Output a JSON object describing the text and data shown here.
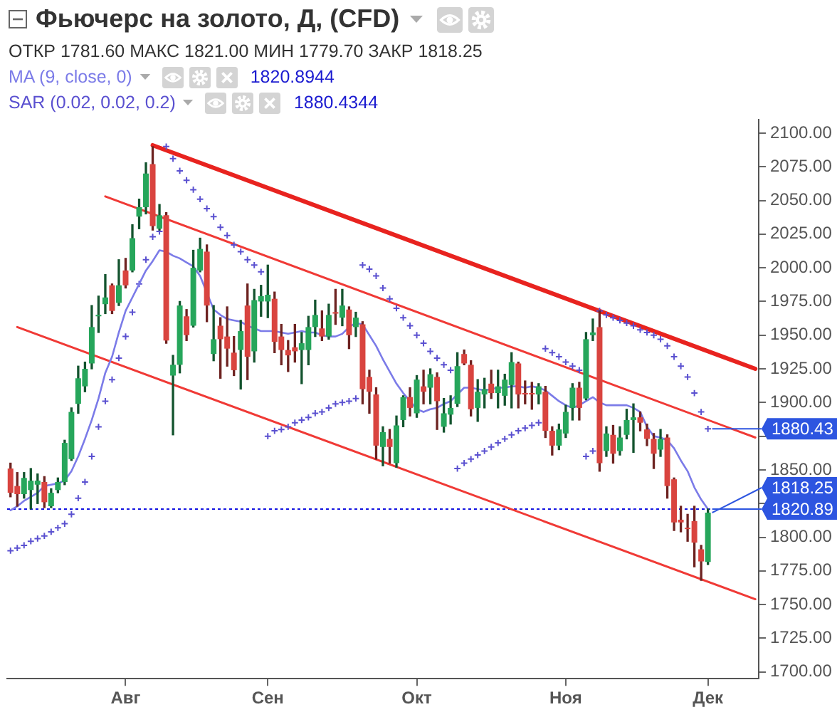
{
  "chart_data": {
    "type": "candlestick",
    "title": "Фьючерс на золото, Д, (CFD)",
    "annotations": [
      "ОТКР 1781.60 МАКС 1821.00 МИН 1779.70 ЗАКР 1818.25",
      "1820.8944",
      "1880.4344",
      {
        "text": "1880.43",
        "x": "Дек",
        "y": 1880.43
      },
      {
        "text": "1820.89",
        "x": "Дек",
        "y": 1820.89
      },
      {
        "text": "1818.25",
        "x": "Дек",
        "y": 1818.25
      }
    ],
    "categories": [
      null,
      null,
      null,
      null,
      null,
      null,
      null,
      null,
      null,
      null,
      null,
      null,
      null,
      null,
      null,
      null,
      null,
      "Авг",
      null,
      null,
      null,
      null,
      null,
      null,
      null,
      null,
      null,
      null,
      null,
      null,
      null,
      null,
      null,
      null,
      null,
      null,
      null,
      null,
      "Сен",
      null,
      null,
      null,
      null,
      null,
      null,
      null,
      null,
      null,
      null,
      null,
      null,
      null,
      null,
      null,
      null,
      null,
      null,
      null,
      null,
      null,
      "Окт",
      null,
      null,
      null,
      null,
      null,
      null,
      null,
      null,
      null,
      null,
      null,
      null,
      null,
      null,
      null,
      null,
      null,
      null,
      null,
      null,
      null,
      "Ноя",
      null,
      null,
      null,
      null,
      null,
      null,
      null,
      null,
      null,
      null,
      null,
      null,
      null,
      null,
      null,
      null,
      null,
      null,
      null,
      null,
      "Дек",
      null,
      null,
      null,
      null,
      null,
      null,
      null
    ],
    "ohlc": [
      [
        1851,
        1855,
        1830,
        1833
      ],
      [
        1838,
        1848,
        1823,
        1832
      ],
      [
        1832,
        1848,
        1829,
        1844
      ],
      [
        1835,
        1851,
        1821,
        1842
      ],
      [
        1839,
        1847,
        1825,
        1842
      ],
      [
        1841,
        1845,
        1822,
        1826
      ],
      [
        1823,
        1836,
        1822,
        1833
      ],
      [
        1835,
        1844,
        1833,
        1841
      ],
      [
        1841,
        1872,
        1839,
        1870
      ],
      [
        1858,
        1896,
        1857,
        1893
      ],
      [
        1899,
        1927,
        1892,
        1918
      ],
      [
        1912,
        1930,
        1908,
        1925
      ],
      [
        1929,
        1972,
        1925,
        1956
      ],
      [
        1964,
        1979,
        1952,
        1965
      ],
      [
        1973,
        1995,
        1966,
        1978
      ],
      [
        1987,
        1988,
        1966,
        1968
      ],
      [
        1974,
        2006,
        1972,
        1987
      ],
      [
        1998,
        2007,
        1985,
        1987
      ],
      [
        1998,
        2032,
        1997,
        2022
      ],
      [
        2038,
        2051,
        2029,
        2045
      ],
      [
        2045,
        2078,
        2040,
        2070
      ],
      [
        2077,
        2090,
        2028,
        2031
      ],
      [
        2029,
        2047,
        2028,
        2039
      ],
      [
        2039,
        2041,
        1944,
        1946
      ],
      [
        1920,
        1935,
        1876,
        1928
      ],
      [
        1928,
        1975,
        1922,
        1972
      ],
      [
        1964,
        1969,
        1946,
        1950
      ],
      [
        1957,
        2013,
        1956,
        2000
      ],
      [
        1998,
        2022,
        1997,
        2014
      ],
      [
        2012,
        2017,
        1960,
        1972
      ],
      [
        1936,
        1972,
        1931,
        1947
      ],
      [
        1957,
        1963,
        1918,
        1947
      ],
      [
        1949,
        1971,
        1927,
        1940
      ],
      [
        1937,
        1949,
        1920,
        1924
      ],
      [
        1939,
        1961,
        1910,
        1953
      ],
      [
        1972,
        1988,
        1917,
        1934
      ],
      [
        1938,
        1984,
        1930,
        1976
      ],
      [
        1975,
        1987,
        1964,
        1979
      ],
      [
        1975,
        2002,
        1963,
        1980
      ],
      [
        1977,
        1982,
        1937,
        1945
      ],
      [
        1949,
        1958,
        1928,
        1939
      ],
      [
        1939,
        1946,
        1923,
        1935
      ],
      [
        1941,
        1958,
        1930,
        1938
      ],
      [
        1939,
        1952,
        1914,
        1944
      ],
      [
        1939,
        1964,
        1928,
        1956
      ],
      [
        1956,
        1976,
        1949,
        1965
      ],
      [
        1955,
        1968,
        1946,
        1949
      ],
      [
        1949,
        1973,
        1947,
        1965
      ],
      [
        1967,
        1984,
        1958,
        1966
      ],
      [
        1963,
        1984,
        1957,
        1972
      ],
      [
        1969,
        1971,
        1940,
        1950
      ],
      [
        1956,
        1967,
        1949,
        1963
      ],
      [
        1958,
        1960,
        1899,
        1910
      ],
      [
        1919,
        1924,
        1892,
        1908
      ],
      [
        1906,
        1911,
        1858,
        1868
      ],
      [
        1867,
        1882,
        1853,
        1878
      ],
      [
        1873,
        1880,
        1855,
        1867
      ],
      [
        1855,
        1890,
        1852,
        1883
      ],
      [
        1887,
        1905,
        1882,
        1904
      ],
      [
        1904,
        1911,
        1890,
        1896
      ],
      [
        1892,
        1920,
        1889,
        1917
      ],
      [
        1912,
        1924,
        1899,
        1908
      ],
      [
        1911,
        1925,
        1899,
        1921
      ],
      [
        1919,
        1922,
        1880,
        1901
      ],
      [
        1882,
        1903,
        1878,
        1892
      ],
      [
        1891,
        1905,
        1884,
        1896
      ],
      [
        1899,
        1937,
        1897,
        1927
      ],
      [
        1936,
        1939,
        1928,
        1929
      ],
      [
        1928,
        1931,
        1890,
        1895
      ],
      [
        1896,
        1917,
        1886,
        1908
      ],
      [
        1906,
        1918,
        1896,
        1910
      ],
      [
        1914,
        1924,
        1903,
        1907
      ],
      [
        1907,
        1924,
        1896,
        1912
      ],
      [
        1905,
        1921,
        1898,
        1917
      ],
      [
        1913,
        1937,
        1896,
        1930
      ],
      [
        1929,
        1930,
        1896,
        1906
      ],
      [
        1907,
        1916,
        1899,
        1906
      ],
      [
        1907,
        1915,
        1895,
        1906
      ],
      [
        1906,
        1914,
        1899,
        1912
      ],
      [
        1908,
        1912,
        1874,
        1879
      ],
      [
        1879,
        1882,
        1861,
        1868
      ],
      [
        1868,
        1884,
        1865,
        1880
      ],
      [
        1877,
        1898,
        1874,
        1893
      ],
      [
        1896,
        1914,
        1887,
        1911
      ],
      [
        1911,
        1915,
        1887,
        1896
      ],
      [
        1903,
        1952,
        1902,
        1947
      ],
      [
        1950,
        1962,
        1946,
        1952
      ],
      [
        1956,
        1968,
        1849,
        1855
      ],
      [
        1864,
        1882,
        1860,
        1877
      ],
      [
        1876,
        1883,
        1855,
        1862
      ],
      [
        1864,
        1882,
        1861,
        1874
      ],
      [
        1876,
        1895,
        1873,
        1887
      ],
      [
        1887,
        1899,
        1863,
        1889
      ],
      [
        1889,
        1893,
        1879,
        1885
      ],
      [
        1880,
        1884,
        1868,
        1873
      ],
      [
        1873,
        1877,
        1851,
        1862
      ],
      [
        1865,
        1880,
        1860,
        1873
      ],
      [
        1874,
        1876,
        1829,
        1838
      ],
      [
        1843,
        1844,
        1805,
        1811
      ],
      [
        1813,
        1823,
        1804,
        1811
      ],
      [
        1807,
        1817,
        1797,
        1806
      ],
      [
        1812,
        1823,
        1778,
        1796
      ],
      [
        1791,
        1794,
        1768,
        1782
      ],
      [
        1781.6,
        1821.0,
        1779.7,
        1818.25
      ],
      null,
      null,
      null,
      null,
      null,
      null,
      null
    ],
    "colors": [
      "#d9443f",
      "#d9443f",
      "#26a65b",
      "#26a65b",
      "#26a65b",
      "#d9443f",
      "#26a65b",
      "#26a65b",
      "#26a65b",
      "#26a65b",
      "#26a65b",
      "#26a65b",
      "#26a65b",
      "#26a65b",
      "#26a65b",
      "#d9443f",
      "#26a65b",
      "#d9443f",
      "#26a65b",
      "#26a65b",
      "#26a65b",
      "#d9443f",
      "#26a65b",
      "#d9443f",
      "#26a65b",
      "#26a65b",
      "#d9443f",
      "#26a65b",
      "#26a65b",
      "#d9443f",
      "#26a65b",
      "#d9443f",
      "#d9443f",
      "#d9443f",
      "#26a65b",
      "#d9443f",
      "#26a65b",
      "#26a65b",
      "#26a65b",
      "#d9443f",
      "#d9443f",
      "#d9443f",
      "#d9443f",
      "#26a65b",
      "#26a65b",
      "#26a65b",
      "#d9443f",
      "#26a65b",
      "#d9443f",
      "#26a65b",
      "#d9443f",
      "#26a65b",
      "#d9443f",
      "#d9443f",
      "#d9443f",
      "#26a65b",
      "#d9443f",
      "#26a65b",
      "#26a65b",
      "#d9443f",
      "#26a65b",
      "#d9443f",
      "#26a65b",
      "#d9443f",
      "#26a65b",
      "#26a65b",
      "#26a65b",
      "#d9443f",
      "#d9443f",
      "#26a65b",
      "#26a65b",
      "#d9443f",
      "#26a65b",
      "#26a65b",
      "#26a65b",
      "#d9443f",
      "#d9443f",
      "#d9443f",
      "#26a65b",
      "#d9443f",
      "#d9443f",
      "#26a65b",
      "#26a65b",
      "#26a65b",
      "#d9443f",
      "#26a65b",
      "#26a65b",
      "#d9443f",
      "#26a65b",
      "#d9443f",
      "#26a65b",
      "#26a65b",
      "#26a65b",
      "#d9443f",
      "#d9443f",
      "#d9443f",
      "#26a65b",
      "#d9443f",
      "#d9443f",
      "#d9443f",
      "#d9443f",
      "#d9443f",
      "#d9443f",
      "#26a65b",
      null,
      null,
      null,
      null,
      null,
      null,
      null
    ],
    "series": [
      {
        "type": "line",
        "name": "MA (9, close, 0)",
        "color": "#7b7be8",
        "values": [
          1820,
          1823,
          1827,
          1830,
          1833,
          1838,
          1839,
          1840,
          1842,
          1849,
          1860,
          1873,
          1887,
          1903,
          1922,
          1934,
          1952,
          1968,
          1978,
          1988,
          1998,
          2005,
          2013,
          2012,
          2009,
          2007,
          2004,
          2001,
          1994,
          null,
          1969,
          1965,
          1962,
          1961,
          1960,
          1957,
          1955,
          1953,
          1953,
          1953,
          1952,
          1951,
          1952,
          1953,
          1952,
          1952,
          1950,
          1949,
          1949,
          1951,
          1956,
          1959,
          1958,
          1950,
          1942,
          1932,
          1923,
          1914,
          1907,
          1901,
          1895,
          1893,
          1895,
          1896,
          1899,
          1901,
          1906,
          1911,
          1911,
          1910,
          1909,
          1910,
          1911,
          1911,
          1912,
          1912,
          1911,
          1912,
          1911,
          1909,
          1905,
          1901,
          1898,
          1896,
          1898,
          1901,
          1904,
          1900,
          1898,
          1898,
          1898,
          1898,
          1896,
          1893,
          1882,
          1875,
          1874,
          1872,
          1866,
          1857,
          1849,
          1837,
          1828,
          1820.89,
          null,
          null,
          null,
          null,
          null,
          null,
          null
        ]
      },
      {
        "type": "scatter",
        "name": "SAR (0.02, 0.02, 0.2)",
        "color": "#5a50d0",
        "marker": "cross",
        "values": [
          1790,
          1792,
          1794,
          1797,
          1799,
          1801,
          1804,
          1807,
          1810,
          1817,
          1829,
          1841,
          1860,
          1882,
          1901,
          1917,
          1933,
          1949,
          1967,
          1988,
          2006,
          2023,
          2027,
          2090,
          2081,
          2072,
          2065,
          2058,
          2051,
          2044,
          2038,
          2030,
          2024,
          2017,
          2012,
          2006,
          2002,
          1997,
          1875,
          1879,
          1880,
          1882,
          1885,
          1887,
          1889,
          1892,
          1893,
          1896,
          1899,
          1900,
          1901,
          1903,
          2002,
          1999,
          1994,
          1985,
          1977,
          1970,
          1963,
          1957,
          1950,
          1944,
          1938,
          1933,
          1928,
          1924,
          1851,
          1855,
          1858,
          1861,
          1864,
          1867,
          1870,
          1873,
          1876,
          1879,
          1881,
          1883,
          1885,
          1940,
          1937,
          1934,
          1930,
          1927,
          1924,
          1860,
          1864,
          1968,
          1965,
          1963,
          1961,
          1959,
          1957,
          1954,
          1952,
          1950,
          1947,
          1942,
          1934,
          1927,
          1919,
          1907,
          1893,
          1880.43,
          null,
          null,
          null,
          null,
          null,
          null,
          null
        ]
      },
      {
        "type": "line",
        "color": "#e8231f",
        "values": [
          null,
          null,
          null,
          null,
          null,
          null,
          null,
          null,
          null,
          null,
          null,
          null,
          null,
          null,
          null,
          null,
          null,
          null,
          null,
          null,
          null,
          2091,
          null,
          null,
          null,
          null,
          null,
          null,
          null,
          null,
          null,
          null,
          null,
          null,
          null,
          null,
          null,
          null,
          null,
          null,
          null,
          null,
          null,
          null,
          null,
          null,
          null,
          null,
          null,
          null,
          null,
          null,
          null,
          null,
          null,
          null,
          null,
          null,
          null,
          null,
          null,
          null,
          null,
          null,
          null,
          null,
          null,
          null,
          null,
          null,
          null,
          null,
          null,
          null,
          null,
          null,
          null,
          null,
          null,
          null,
          null,
          null,
          null,
          null,
          null,
          null,
          null,
          null,
          null,
          null,
          null,
          null,
          null,
          null,
          null,
          null,
          null,
          null,
          null,
          null,
          null,
          null,
          null,
          null,
          null,
          null,
          null,
          null,
          null,
          null,
          1925
        ]
      },
      {
        "type": "line",
        "color": "#f03a36",
        "values": [
          null,
          null,
          null,
          null,
          null,
          null,
          null,
          null,
          null,
          null,
          null,
          null,
          null,
          null,
          2053,
          null,
          null,
          null,
          null,
          null,
          null,
          null,
          null,
          null,
          null,
          null,
          null,
          null,
          null,
          null,
          null,
          null,
          null,
          null,
          null,
          null,
          null,
          null,
          null,
          null,
          null,
          null,
          null,
          null,
          null,
          null,
          null,
          null,
          null,
          null,
          null,
          null,
          null,
          null,
          null,
          null,
          null,
          null,
          null,
          null,
          null,
          null,
          null,
          null,
          null,
          null,
          null,
          null,
          null,
          null,
          null,
          null,
          null,
          null,
          null,
          null,
          null,
          null,
          null,
          null,
          null,
          null,
          null,
          null,
          null,
          null,
          null,
          null,
          null,
          null,
          null,
          null,
          null,
          null,
          null,
          null,
          null,
          null,
          null,
          null,
          null,
          null,
          null,
          null,
          null,
          null,
          null,
          null,
          null,
          null,
          1874
        ]
      },
      {
        "type": "line",
        "color": "#f03a36",
        "values": [
          null,
          1956,
          null,
          null,
          null,
          null,
          null,
          null,
          null,
          null,
          null,
          null,
          null,
          null,
          null,
          null,
          null,
          null,
          null,
          null,
          null,
          null,
          null,
          null,
          null,
          null,
          null,
          null,
          null,
          null,
          null,
          null,
          null,
          null,
          null,
          null,
          null,
          null,
          null,
          null,
          null,
          null,
          null,
          null,
          null,
          null,
          null,
          null,
          null,
          null,
          null,
          null,
          null,
          null,
          null,
          null,
          null,
          null,
          null,
          null,
          null,
          null,
          null,
          null,
          null,
          null,
          null,
          null,
          null,
          null,
          null,
          null,
          null,
          null,
          null,
          null,
          null,
          null,
          null,
          null,
          null,
          null,
          null,
          null,
          null,
          null,
          null,
          null,
          null,
          null,
          null,
          null,
          null,
          null,
          null,
          null,
          null,
          null,
          null,
          null,
          null,
          null,
          null,
          null,
          null,
          null,
          null,
          null,
          null,
          null,
          1754
        ]
      }
    ],
    "ylim": [
      1695,
      2110
    ],
    "yticks": [
      {
        "value": 1700,
        "label": "1700.00"
      },
      {
        "value": 1725,
        "label": "1725.00"
      },
      {
        "value": 1750,
        "label": "1750.00"
      },
      {
        "value": 1775,
        "label": "1775.00"
      },
      {
        "value": 1800,
        "label": "1800.00"
      },
      {
        "value": 1825,
        "label": null
      },
      {
        "value": 1850,
        "label": "1850.00"
      },
      {
        "value": 1875,
        "label": null
      },
      {
        "value": 1900,
        "label": "1900.00"
      },
      {
        "value": 1925,
        "label": "1925.00"
      },
      {
        "value": 1950,
        "label": "1950.00"
      },
      {
        "value": 1975,
        "label": "1975.00"
      },
      {
        "value": 2000,
        "label": "2000.00"
      },
      {
        "value": 2025,
        "label": "2025.00"
      },
      {
        "value": 2050,
        "label": "2050.00"
      },
      {
        "value": 2075,
        "label": "2075.00"
      },
      {
        "value": 2100,
        "label": "2100.00"
      }
    ],
    "ref_lines": [
      {
        "axis": "y",
        "value": 1820.89,
        "color": "#1414e0",
        "line_style": "dotted"
      }
    ],
    "legend": "top left"
  }
}
